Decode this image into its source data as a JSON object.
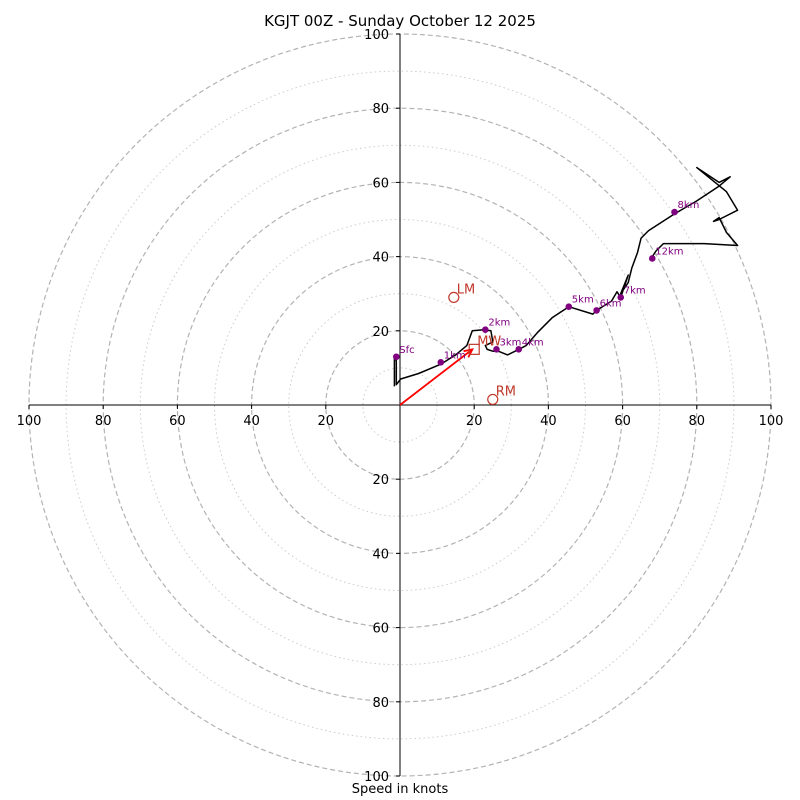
{
  "chart_data": {
    "type": "hodograph",
    "title": "KGJT 00Z - Sunday October 12 2025",
    "xlabel": "Speed in knots",
    "xlim": [
      -100,
      100
    ],
    "ylim": [
      -100,
      100
    ],
    "ring_major": [
      20,
      40,
      60,
      80,
      100
    ],
    "ring_minor": [
      10,
      30,
      50,
      70,
      90
    ],
    "x_ticks": [
      {
        "value": -100,
        "label": "100"
      },
      {
        "value": -80,
        "label": "80"
      },
      {
        "value": -60,
        "label": "60"
      },
      {
        "value": -40,
        "label": "40"
      },
      {
        "value": -20,
        "label": "20"
      },
      {
        "value": 20,
        "label": "20"
      },
      {
        "value": 40,
        "label": "40"
      },
      {
        "value": 60,
        "label": "60"
      },
      {
        "value": 80,
        "label": "80"
      },
      {
        "value": 100,
        "label": "100"
      }
    ],
    "y_ticks": [
      {
        "value": 100,
        "label": "100"
      },
      {
        "value": 80,
        "label": "80"
      },
      {
        "value": 60,
        "label": "60"
      },
      {
        "value": 40,
        "label": "40"
      },
      {
        "value": 20,
        "label": "20"
      },
      {
        "value": -20,
        "label": "20"
      },
      {
        "value": -40,
        "label": "40"
      },
      {
        "value": -60,
        "label": "60"
      },
      {
        "value": -80,
        "label": "80"
      },
      {
        "value": -100,
        "label": "100"
      }
    ],
    "trace": [
      [
        -1.5,
        5
      ],
      [
        -1.5,
        12.5
      ],
      [
        -1,
        12
      ],
      [
        -1,
        5.5
      ],
      [
        0.2,
        7
      ],
      [
        5,
        8.5
      ],
      [
        11,
        11
      ],
      [
        15,
        13.5
      ],
      [
        18,
        16
      ],
      [
        19.5,
        20
      ],
      [
        22.5,
        20.3
      ],
      [
        24.5,
        20
      ],
      [
        25,
        17
      ],
      [
        23,
        16
      ],
      [
        23.5,
        15
      ],
      [
        25,
        14.5
      ],
      [
        26.5,
        14.5
      ],
      [
        29,
        13.5
      ],
      [
        32,
        15
      ],
      [
        34,
        16
      ],
      [
        37,
        19.5
      ],
      [
        41,
        23.5
      ],
      [
        45.5,
        26.5
      ],
      [
        52,
        24.5
      ],
      [
        53,
        25.5
      ],
      [
        57,
        28
      ],
      [
        58.5,
        30.5
      ],
      [
        59.5,
        29
      ],
      [
        61.5,
        35
      ],
      [
        59.5,
        30
      ],
      [
        61.5,
        33
      ],
      [
        62.5,
        37
      ],
      [
        64,
        41
      ],
      [
        65,
        45
      ],
      [
        67,
        47
      ],
      [
        74,
        51.5
      ],
      [
        80,
        55
      ],
      [
        86,
        59
      ],
      [
        89,
        61.5
      ],
      [
        86,
        60
      ],
      [
        80,
        64
      ],
      [
        88,
        57.5
      ],
      [
        91,
        52.5
      ],
      [
        86,
        50
      ],
      [
        84.5,
        49.5
      ],
      [
        86,
        50.5
      ],
      [
        88,
        46.5
      ],
      [
        91,
        43
      ],
      [
        82,
        43.5
      ],
      [
        71,
        43.5
      ],
      [
        69,
        41.5
      ],
      [
        68,
        40
      ]
    ],
    "height_markers": [
      {
        "label": "Sfc",
        "u": -1,
        "v": 13
      },
      {
        "label": "1km",
        "u": 11,
        "v": 11.5
      },
      {
        "label": "2km",
        "u": 23,
        "v": 20.3
      },
      {
        "label": "3km",
        "u": 26,
        "v": 15
      },
      {
        "label": "4km",
        "u": 32,
        "v": 15
      },
      {
        "label": "5km",
        "u": 45.5,
        "v": 26.5
      },
      {
        "label": "6km",
        "u": 53,
        "v": 25.5
      },
      {
        "label": "7km",
        "u": 59.5,
        "v": 29
      },
      {
        "label": "8km",
        "u": 74,
        "v": 52
      },
      {
        "label": "12km",
        "u": 68,
        "v": 39.5
      }
    ],
    "storm_motion": [
      {
        "label": "LM",
        "u": 14.5,
        "v": 29,
        "marker": "circle"
      },
      {
        "label": "MW",
        "u": 20,
        "v": 15,
        "marker": "square"
      },
      {
        "label": "RM",
        "u": 25,
        "v": 1.5,
        "marker": "circle"
      }
    ],
    "shear_vector": {
      "from": [
        0,
        0
      ],
      "to": [
        19.5,
        15
      ]
    },
    "colors": {
      "trace": "#000000",
      "marker": "#800080",
      "storm": "#c0392b",
      "vector": "#ff0000",
      "ring_major": "#b3b3b3",
      "ring_minor": "#cccccc"
    }
  }
}
